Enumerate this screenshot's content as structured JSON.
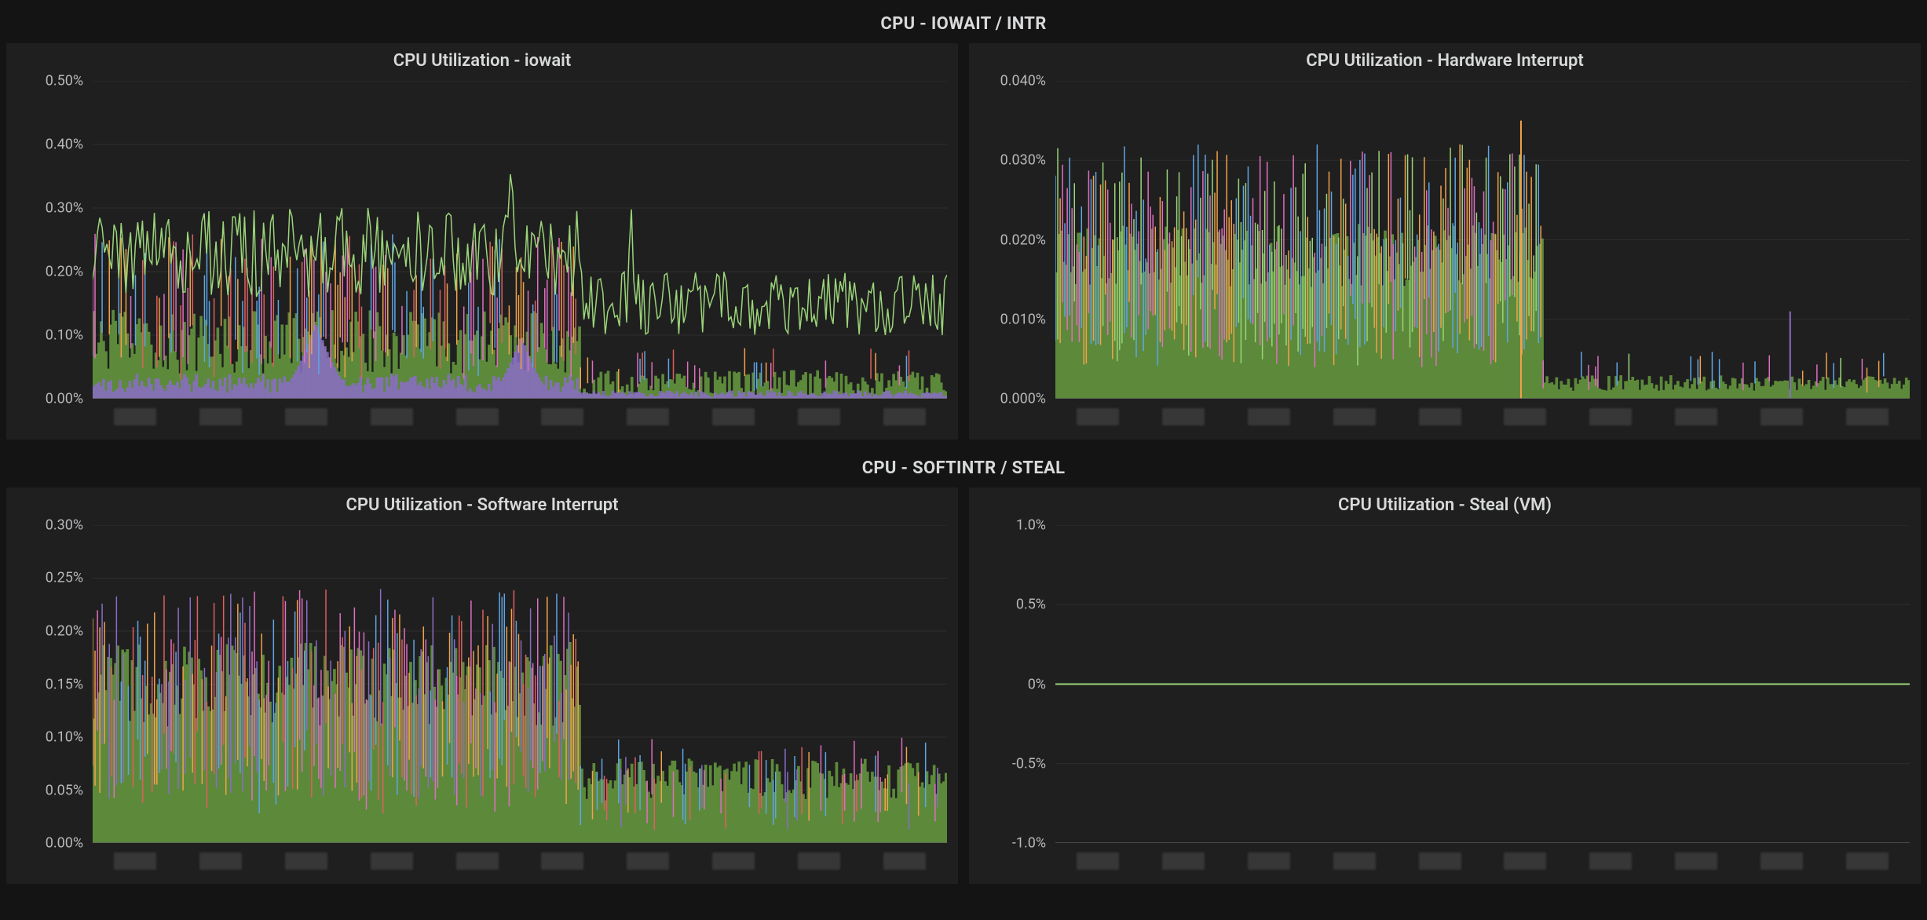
{
  "dashboard": {
    "background_color": "#141414",
    "panel_background": "#1f1f1f",
    "grid_color": "#2f2f2f",
    "axis_color": "#5a5a5a",
    "text_color": "#d8d9da",
    "tick_label_color": "#b7b8ba",
    "series_colors": {
      "green_light": "#9bd47a",
      "green_dark": "#5c8a3a",
      "purple": "#8a6dc7",
      "orange": "#f2a24a",
      "blue": "#5fa5e6",
      "pink": "#e06ec1",
      "red": "#e05f5f"
    },
    "x_tick_count": 10,
    "sections": [
      {
        "header": "CPU - IOWAIT / INTR",
        "panels": [
          {
            "id": "iowait",
            "title": "CPU Utilization - iowait",
            "type": "line-stacked-dense",
            "y": {
              "min": 0,
              "max": 0.5,
              "unit": "%",
              "decimals": 2,
              "ticks": [
                0,
                0.1,
                0.2,
                0.3,
                0.4,
                0.5
              ]
            },
            "fontsize": {
              "title": 22,
              "ticks": 18
            },
            "regime_change_x": 0.57,
            "series": {
              "green_light_line": {
                "color": "#9bd47a",
                "style": "line",
                "phase_a": {
                  "base": 0.23,
                  "noise": 0.07
                },
                "phase_b": {
                  "base": 0.15,
                  "noise": 0.05
                },
                "spikes": [
                  {
                    "x": 0.49,
                    "y": 0.41
                  },
                  {
                    "x": 0.63,
                    "y": 0.32
                  }
                ]
              },
              "green_fill": {
                "color": "#5c8a3a",
                "style": "fill",
                "phase_a": {
                  "base": 0.09,
                  "noise": 0.05
                },
                "phase_b": {
                  "base": 0.025,
                  "noise": 0.02
                }
              },
              "purple_fill": {
                "color": "#8a6dc7",
                "style": "fill",
                "phase_a": {
                  "base": 0.03,
                  "noise": 0.04
                },
                "phase_b": {
                  "base": 0.01,
                  "noise": 0.01
                },
                "humps": [
                  {
                    "x": 0.26,
                    "y": 0.12,
                    "w": 0.06
                  },
                  {
                    "x": 0.5,
                    "y": 0.1,
                    "w": 0.05
                  }
                ]
              },
              "color_spikes": {
                "colors": [
                  "#f2a24a",
                  "#5fa5e6",
                  "#e06ec1",
                  "#e05f5f"
                ],
                "phase_a": {
                  "rate": 0.55,
                  "top": 0.26
                },
                "phase_b": {
                  "rate": 0.15,
                  "top": 0.08
                }
              }
            }
          },
          {
            "id": "hwintr",
            "title": "CPU Utilization - Hardware Interrupt",
            "type": "dense-spikes",
            "y": {
              "min": 0,
              "max": 0.04,
              "unit": "%",
              "decimals": 3,
              "ticks": [
                0,
                0.01,
                0.02,
                0.03,
                0.04
              ]
            },
            "fontsize": {
              "title": 22,
              "ticks": 18
            },
            "regime_change_x": 0.57,
            "series": {
              "green_fill": {
                "color": "#5c8a3a",
                "style": "fill",
                "phase_a": {
                  "base": 0.018,
                  "noise": 0.004
                },
                "phase_b": {
                  "base": 0.002,
                  "noise": 0.001
                }
              },
              "color_spikes": {
                "colors": [
                  "#f2a24a",
                  "#5fa5e6",
                  "#e06ec1",
                  "#9bd47a"
                ],
                "phase_a": {
                  "rate": 1.0,
                  "top": 0.032
                },
                "phase_b": {
                  "rate": 0.2,
                  "top": 0.006
                }
              },
              "tall_spikes": [
                {
                  "x": 0.545,
                  "y": 0.035,
                  "color": "#f2a24a"
                },
                {
                  "x": 0.86,
                  "y": 0.011,
                  "color": "#8a6dc7"
                }
              ]
            }
          }
        ]
      },
      {
        "header": "CPU - SOFTINTR / STEAL",
        "panels": [
          {
            "id": "softintr",
            "title": "CPU Utilization - Software Interrupt",
            "type": "dense-spikes",
            "y": {
              "min": 0,
              "max": 0.3,
              "unit": "%",
              "decimals": 2,
              "ticks": [
                0,
                0.05,
                0.1,
                0.15,
                0.2,
                0.25,
                0.3
              ]
            },
            "fontsize": {
              "title": 22,
              "ticks": 18
            },
            "regime_change_x": 0.57,
            "series": {
              "green_fill": {
                "color": "#5c8a3a",
                "style": "fill",
                "phase_a": {
                  "base": 0.15,
                  "noise": 0.04
                },
                "phase_b": {
                  "base": 0.06,
                  "noise": 0.02
                }
              },
              "color_spikes": {
                "colors": [
                  "#f2a24a",
                  "#5fa5e6",
                  "#e06ec1",
                  "#e05f5f",
                  "#8a6dc7"
                ],
                "phase_a": {
                  "rate": 0.9,
                  "top": 0.24
                },
                "phase_b": {
                  "rate": 0.35,
                  "top": 0.1
                }
              }
            }
          },
          {
            "id": "steal",
            "title": "CPU Utilization - Steal (VM)",
            "type": "flat",
            "y": {
              "min": -1.0,
              "max": 1.0,
              "unit": "%",
              "decimals": 1,
              "ticks": [
                -1.0,
                -0.5,
                0,
                0.5,
                1.0
              ]
            },
            "fontsize": {
              "title": 22,
              "ticks": 18
            },
            "series": {
              "flat": {
                "color": "#9bd47a",
                "value": 0
              }
            }
          }
        ]
      }
    ]
  }
}
